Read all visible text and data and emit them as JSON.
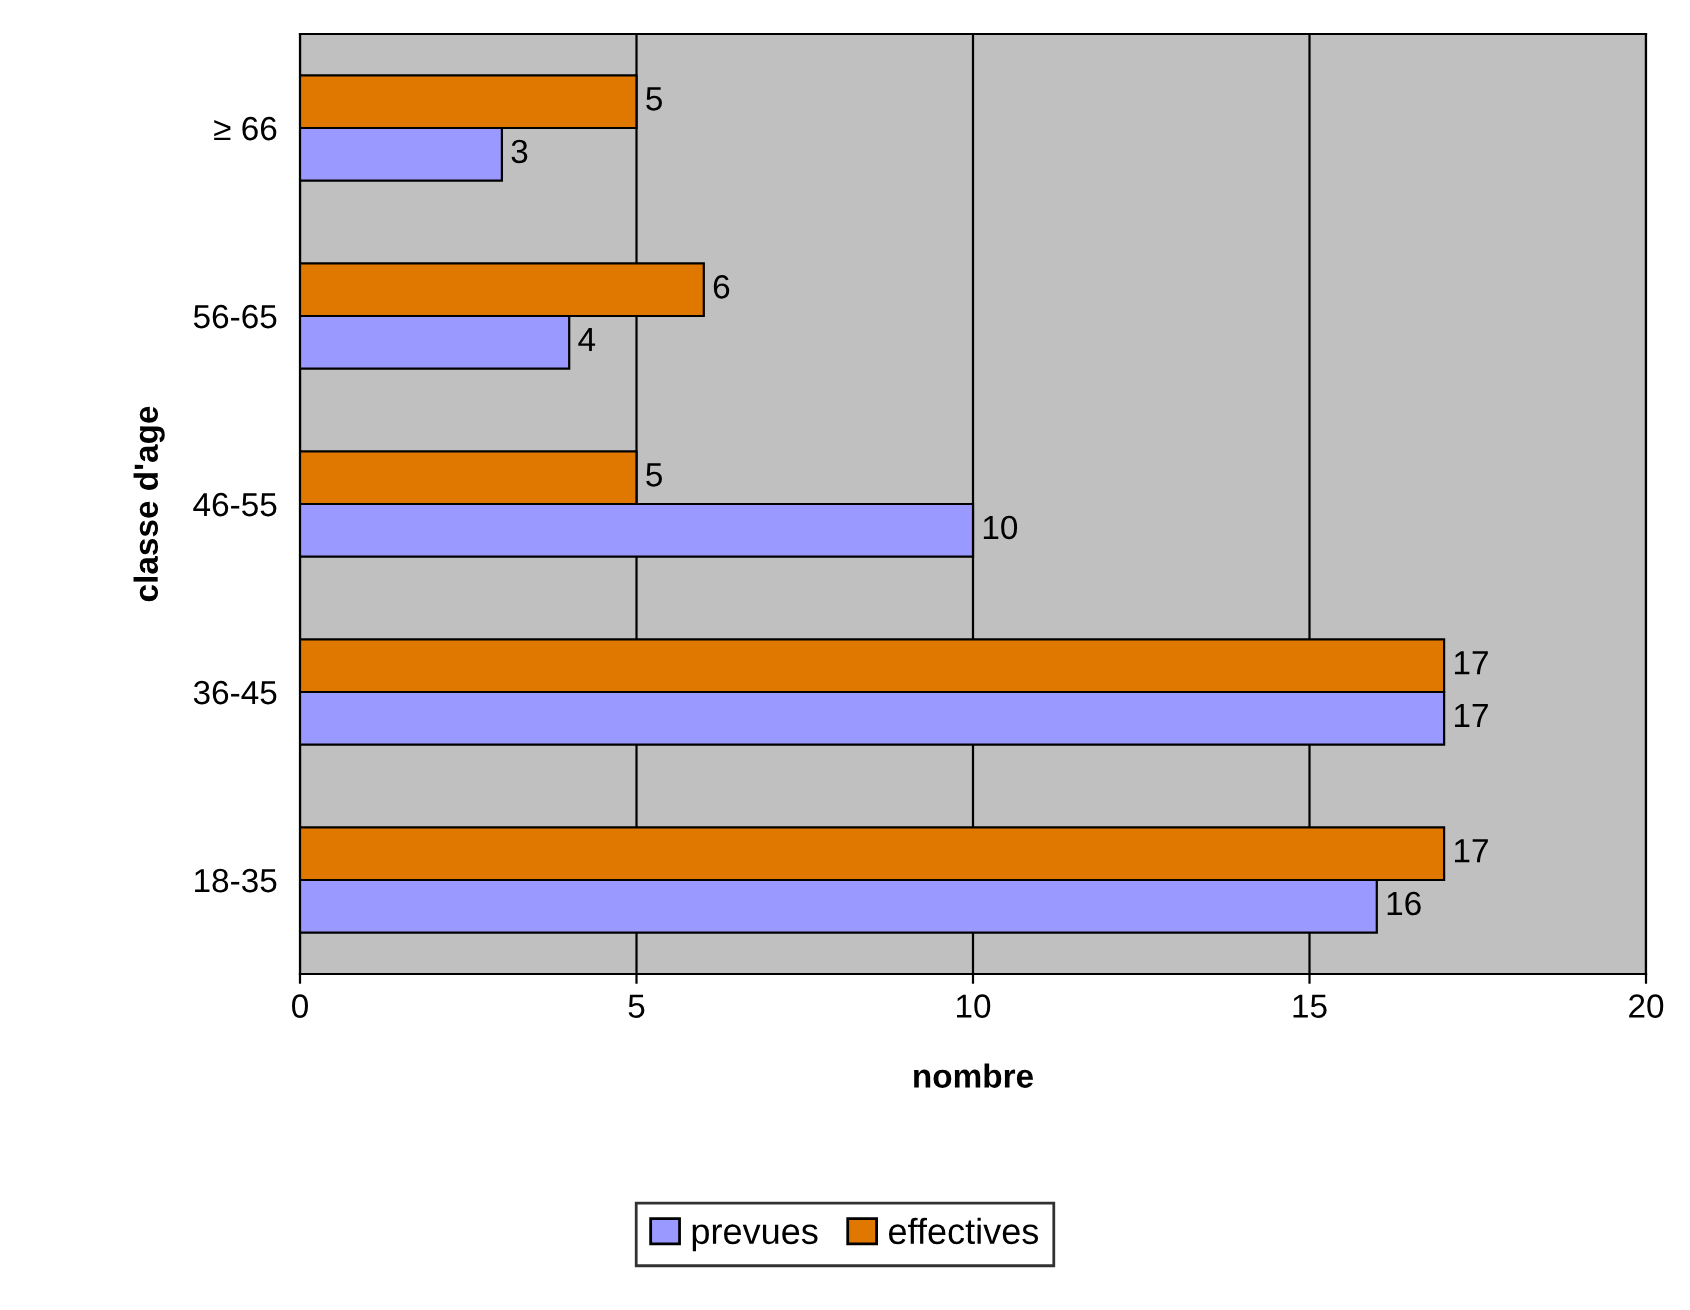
{
  "chart_data": {
    "type": "bar",
    "orientation": "horizontal",
    "xlabel": "nombre",
    "ylabel": "classe d'age",
    "categories": [
      "≥ 66",
      "56-65",
      "46-55",
      "36-45",
      "18-35"
    ],
    "series": [
      {
        "name": "prevues",
        "color": "#9999ff",
        "values": [
          3,
          4,
          10,
          17,
          16
        ]
      },
      {
        "name": "effectives",
        "color": "#e07800",
        "values": [
          5,
          6,
          5,
          17,
          17
        ]
      }
    ],
    "xlim": [
      0,
      20
    ],
    "xticks": [
      0,
      5,
      10,
      15,
      20
    ],
    "grid": "x",
    "legend": "bottom",
    "data_labels": true
  }
}
